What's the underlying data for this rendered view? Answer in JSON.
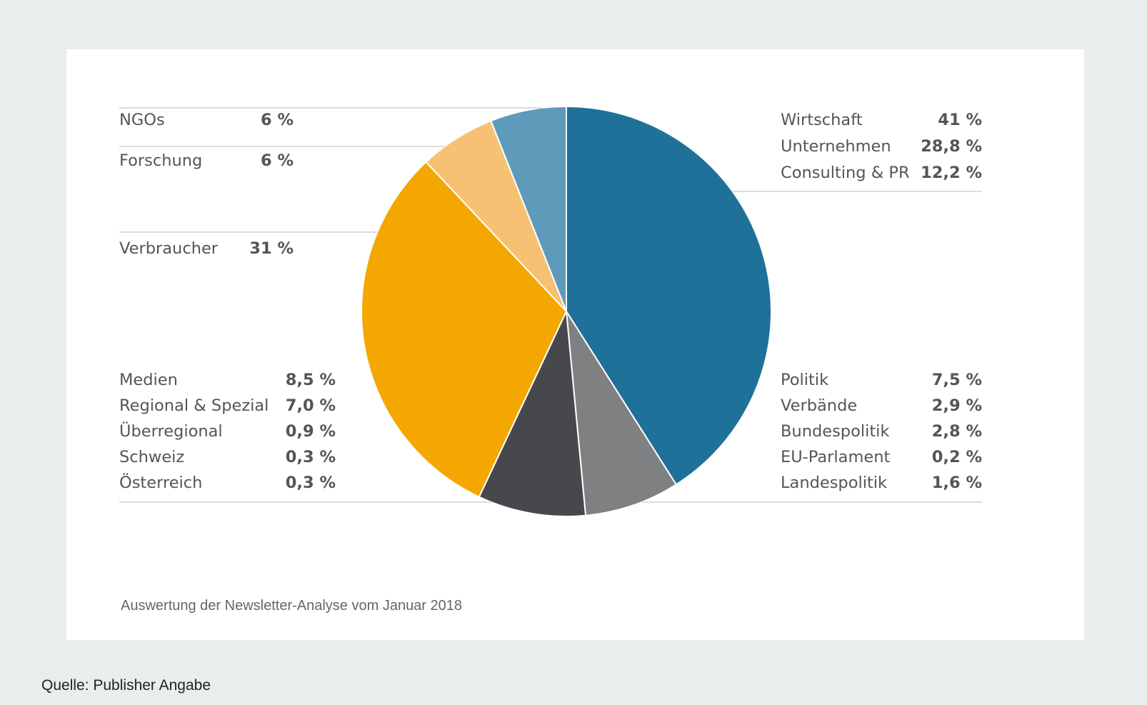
{
  "chart_data": {
    "type": "pie",
    "colors": [
      "#1f7199",
      "#7f8082",
      "#46484b",
      "#f4a700",
      "#f6c172",
      "#5e9aba"
    ],
    "slices": [
      {
        "label": "Wirtschaft",
        "value": 41,
        "value_text": "41 %",
        "details": [
          {
            "label": "Unternehmen",
            "value_text": "28,8 %"
          },
          {
            "label": "Consulting & PR",
            "value_text": "12,2 %"
          }
        ]
      },
      {
        "label": "Politik",
        "value": 7.5,
        "value_text": "7,5 %",
        "details": [
          {
            "label": "Verbände",
            "value_text": "2,9 %"
          },
          {
            "label": "Bundespolitik",
            "value_text": "2,8 %"
          },
          {
            "label": "EU-Parlament",
            "value_text": "0,2 %"
          },
          {
            "label": "Landespolitik",
            "value_text": "1,6 %"
          }
        ]
      },
      {
        "label": "Medien",
        "value": 8.5,
        "value_text": "8,5 %",
        "details": [
          {
            "label": "Regional & Spezial",
            "value_text": "7,0 %"
          },
          {
            "label": "Überregional",
            "value_text": "0,9 %"
          },
          {
            "label": "Schweiz",
            "value_text": "0,3 %"
          },
          {
            "label": "Österreich",
            "value_text": "0,3 %"
          }
        ]
      },
      {
        "label": "Verbraucher",
        "value": 31,
        "value_text": "31 %",
        "details": []
      },
      {
        "label": "Forschung",
        "value": 6,
        "value_text": "6 %",
        "details": []
      },
      {
        "label": "NGOs",
        "value": 6,
        "value_text": "6 %",
        "details": []
      }
    ]
  },
  "note": "Auswertung der Newsletter-Analyse vom Januar 2018",
  "source": "Quelle: Publisher Angabe"
}
